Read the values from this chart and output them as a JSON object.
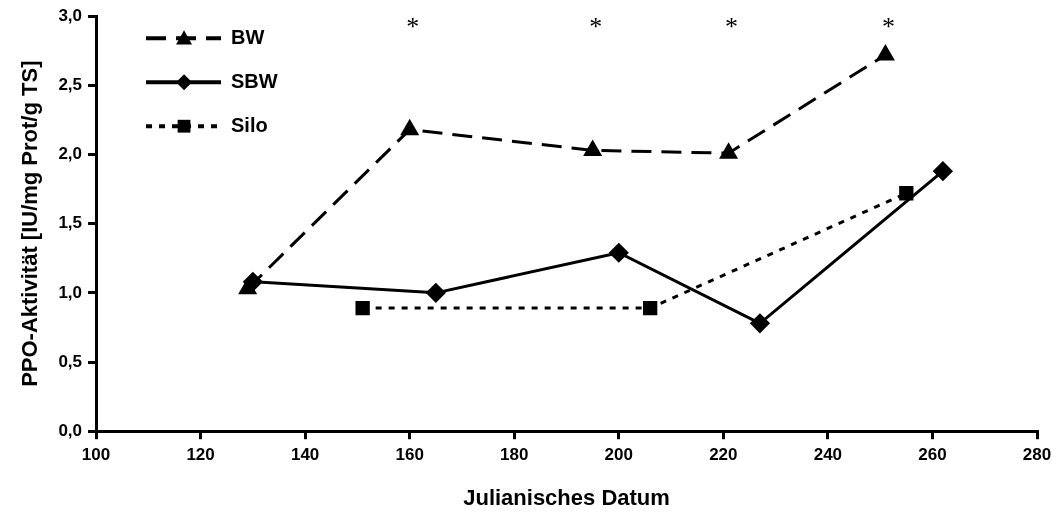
{
  "chart_data": {
    "type": "line",
    "xlabel": "Julianisches Datum",
    "ylabel": "PPO-Aktivität [IU/mg Prot/g TS]",
    "xlim": [
      100,
      280
    ],
    "xticks": [
      100,
      120,
      140,
      160,
      180,
      200,
      220,
      240,
      260,
      280
    ],
    "ylim": [
      0,
      3
    ],
    "yticks": [
      {
        "value": 0,
        "label": "0,0"
      },
      {
        "value": 0.5,
        "label": "0,5"
      },
      {
        "value": 1,
        "label": "1,0"
      },
      {
        "value": 1.5,
        "label": "1,5"
      },
      {
        "value": 2,
        "label": "2,0"
      },
      {
        "value": 2.5,
        "label": "2,5"
      },
      {
        "value": 3,
        "label": "3,0"
      }
    ],
    "legend": "top left",
    "series": [
      {
        "name": "BW",
        "color": "#000000",
        "marker": "triangle",
        "line_style": "dashed",
        "x": [
          129,
          160,
          195,
          221,
          251
        ],
        "values": [
          1.03,
          2.18,
          2.03,
          2.01,
          2.72
        ]
      },
      {
        "name": "SBW",
        "color": "#000000",
        "marker": "diamond",
        "line_style": "solid",
        "x": [
          130,
          165,
          200,
          227,
          262
        ],
        "values": [
          1.08,
          1.0,
          1.29,
          0.78,
          1.88
        ]
      },
      {
        "name": "Silo",
        "color": "#000000",
        "marker": "square",
        "line_style": "dotted",
        "x": [
          151,
          206,
          255
        ],
        "values": [
          0.89,
          0.89,
          1.72
        ]
      }
    ],
    "annotations": [
      "*",
      "*",
      "*",
      "*"
    ]
  }
}
